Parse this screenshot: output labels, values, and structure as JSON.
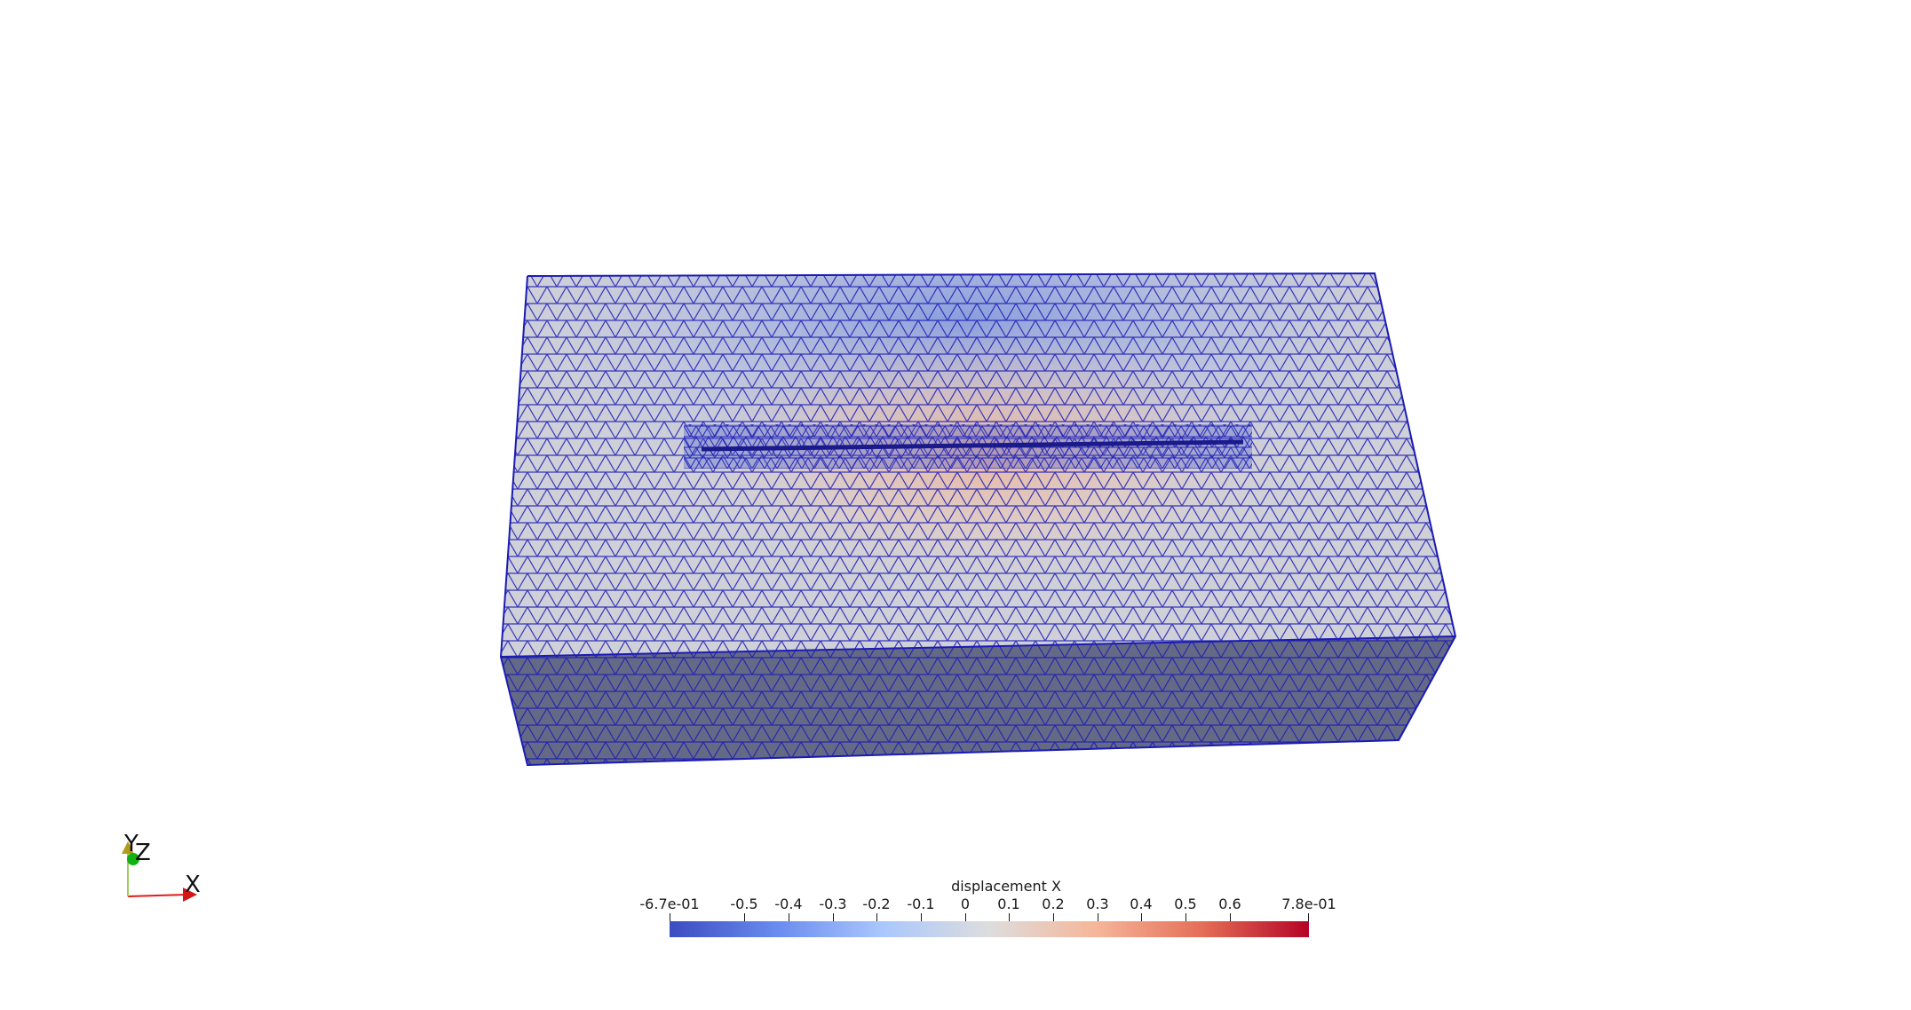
{
  "scene": {
    "colors": {
      "mesh_edges": "#1b1bb4",
      "top_face_base": "#c9ccd6",
      "side_face_base": "#646a86",
      "end_face_base": "#6f7590"
    },
    "mesh_object": "tetrahedral-mesh-box"
  },
  "colorbar": {
    "title": "displacement X",
    "colormap": "Cool to Warm",
    "range": [
      -0.67,
      0.78
    ],
    "min_label": "-6.7e-01",
    "max_label": "7.8e-01",
    "ticks": [
      "-0.5",
      "-0.4",
      "-0.3",
      "-0.2",
      "-0.1",
      "0",
      "0.1",
      "0.2",
      "0.3",
      "0.4",
      "0.5",
      "0.6"
    ],
    "colors": [
      "#3b4cc0",
      "#6a8bef",
      "#aac7fd",
      "#dddddd",
      "#f6b69a",
      "#e46e56",
      "#b40426"
    ]
  },
  "orientation_axes": {
    "x_label": "X",
    "y_label": "Y",
    "z_label": "Z",
    "x_color": "#e01b1b",
    "y_color": "#e6e000",
    "z_color": "#0fb00f"
  }
}
